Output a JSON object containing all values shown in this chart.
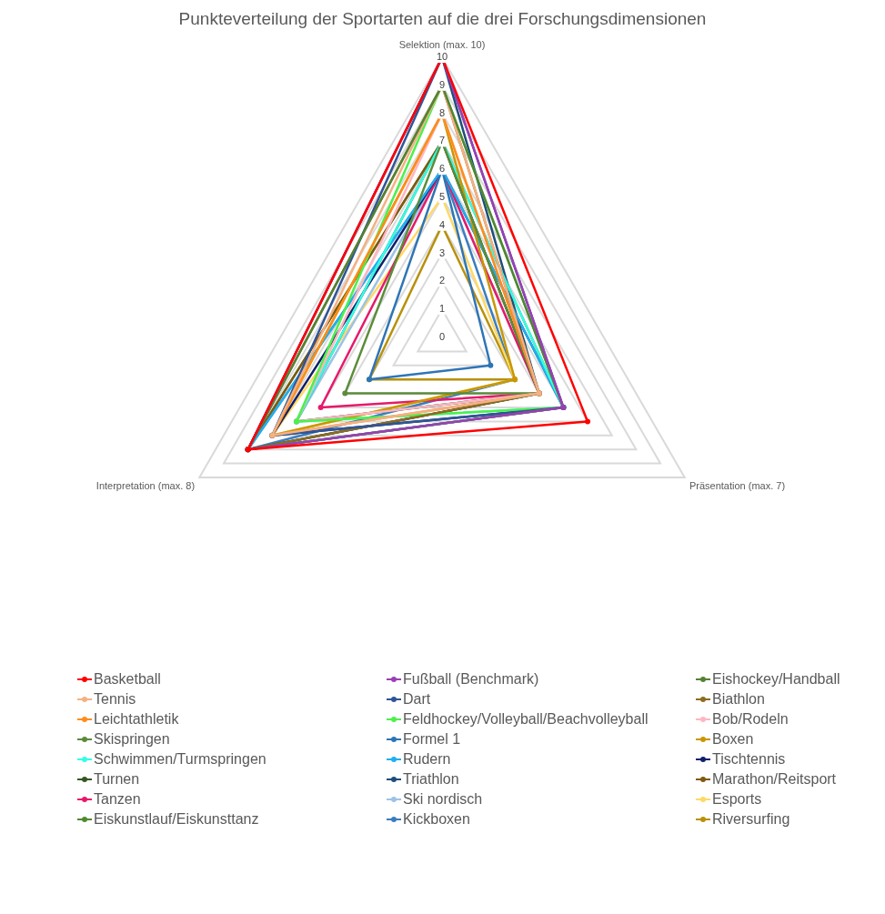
{
  "chart_data": {
    "type": "radar",
    "title": "Punkteverteilung der Sportarten auf die drei Forschungsdimensionen",
    "categories": [
      "Selektion (max. 10)",
      "Präsentation (max. 7)",
      "Interpretation (max. 8)"
    ],
    "ylim": [
      0,
      10
    ],
    "yticks": [
      0,
      1,
      2,
      3,
      4,
      5,
      6,
      7,
      8,
      9,
      10
    ],
    "grid": true,
    "legend": "bottom",
    "marker": "circle",
    "series": [
      {
        "name": "Basketball",
        "color": "#ff0000",
        "values": [
          10,
          6,
          8
        ]
      },
      {
        "name": "Fußball (Benchmark)",
        "color": "#9b3fb5",
        "values": [
          10,
          5,
          8
        ]
      },
      {
        "name": "Eishockey/Handball",
        "color": "#548235",
        "values": [
          9,
          5,
          8
        ]
      },
      {
        "name": "Tennis",
        "color": "#f4b183",
        "values": [
          9,
          4,
          7
        ]
      },
      {
        "name": "Dart",
        "color": "#2f5597",
        "values": [
          10,
          5,
          7
        ]
      },
      {
        "name": "Biathlon",
        "color": "#8c6d1f",
        "values": [
          9,
          4,
          8
        ]
      },
      {
        "name": "Leichtathletik",
        "color": "#ff8c1a",
        "values": [
          8,
          4,
          7
        ]
      },
      {
        "name": "Feldhockey/Volleyball/Beachvolleyball",
        "color": "#4cf04c",
        "values": [
          9,
          5,
          6
        ]
      },
      {
        "name": "Bob/Rodeln",
        "color": "#ffb6c1",
        "values": [
          8,
          4,
          6
        ]
      },
      {
        "name": "Skispringen",
        "color": "#5b8c3a",
        "values": [
          7,
          4,
          4
        ]
      },
      {
        "name": "Formel 1",
        "color": "#2e75b6",
        "values": [
          6,
          2,
          3
        ]
      },
      {
        "name": "Boxen",
        "color": "#c99700",
        "values": [
          8,
          3,
          7
        ]
      },
      {
        "name": "Schwimmen/Turmspringen",
        "color": "#33ffe6",
        "values": [
          7,
          5,
          6
        ]
      },
      {
        "name": "Rudern",
        "color": "#1fb0f0",
        "values": [
          6,
          5,
          8
        ]
      },
      {
        "name": "Tischtennis",
        "color": "#10206b",
        "values": [
          6,
          5,
          7
        ]
      },
      {
        "name": "Turnen",
        "color": "#375623",
        "values": [
          7,
          4,
          6
        ]
      },
      {
        "name": "Triathlon",
        "color": "#1f4e79",
        "values": [
          10,
          4,
          8
        ]
      },
      {
        "name": "Marathon/Reitsport",
        "color": "#7f5a10",
        "values": [
          7,
          4,
          8
        ]
      },
      {
        "name": "Tanzen",
        "color": "#e6196b",
        "values": [
          6,
          4,
          5
        ]
      },
      {
        "name": "Ski nordisch",
        "color": "#9dc3e6",
        "values": [
          6,
          4,
          6
        ]
      },
      {
        "name": "Esports",
        "color": "#ffd966",
        "values": [
          5,
          3,
          7
        ]
      },
      {
        "name": "Eiskunstlauf/Eiskunsttanz",
        "color": "#4e8a2e",
        "values": [
          7,
          5,
          8
        ]
      },
      {
        "name": "Kickboxen",
        "color": "#3a7dc0",
        "values": [
          6,
          3,
          8
        ]
      },
      {
        "name": "Riversurfing",
        "color": "#b8900a",
        "values": [
          4,
          3,
          3
        ]
      }
    ]
  }
}
